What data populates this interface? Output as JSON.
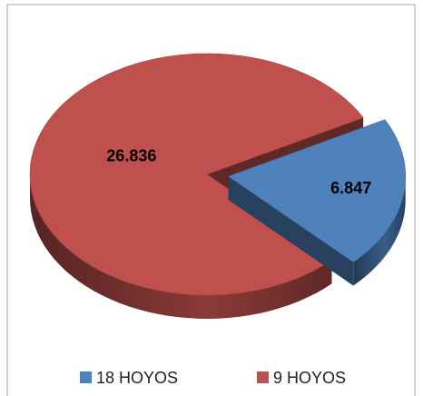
{
  "chart_data": {
    "type": "pie",
    "three_d": true,
    "labels": [
      "18 HOYOS",
      "9 HOYOS"
    ],
    "values": [
      6.847,
      26.836
    ],
    "colors": [
      "#4f81bd",
      "#c0504d"
    ],
    "exploded": [
      true,
      false
    ],
    "legend": "bottom"
  }
}
